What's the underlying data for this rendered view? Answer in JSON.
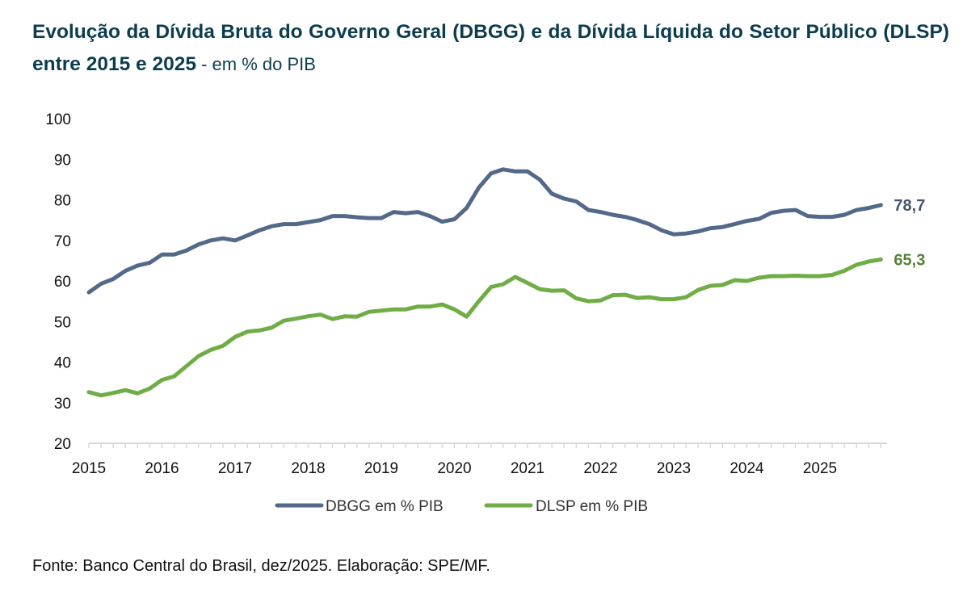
{
  "title": {
    "main": "Evolução da Dívida Bruta do Governo Geral (DBGG) e da Dívida Líquida do Setor Público (DLSP) entre 2015 e 2025",
    "suffix": " - em % do PIB"
  },
  "source": "Fonte: Banco Central do Brasil, dez/2025. Elaboração: SPE/MF.",
  "chart_data": {
    "type": "line",
    "title": "Evolução da Dívida Bruta do Governo Geral (DBGG) e da Dívida Líquida do Setor Público (DLSP) entre 2015 e 2025 - em % do PIB",
    "xlabel": "",
    "ylabel": "",
    "ylim": [
      20,
      100
    ],
    "yticks": [
      "100",
      "90",
      "80",
      "70",
      "60",
      "50",
      "40",
      "30",
      "20"
    ],
    "xticks": [
      "2015",
      "2016",
      "2017",
      "2018",
      "2019",
      "2020",
      "2021",
      "2022",
      "2023",
      "2024",
      "2025"
    ],
    "grid": false,
    "legend_position": "bottom",
    "x_start": "2015-01",
    "x_step": "2 months",
    "x_end": "2025-11",
    "series": [
      {
        "name": "DBGG em % PIB",
        "color": "#54698a",
        "end_label": "78,7",
        "values": [
          57.2,
          59.3,
          60.5,
          62.5,
          63.8,
          64.5,
          66.5,
          66.5,
          67.5,
          69,
          70,
          70.5,
          70,
          71.2,
          72.5,
          73.5,
          74,
          74,
          74.5,
          75,
          76,
          76,
          75.7,
          75.5,
          75.5,
          77,
          76.7,
          77,
          76,
          74.6,
          75.2,
          78,
          83,
          86.5,
          87.5,
          87,
          87,
          85,
          81.5,
          80.3,
          79.6,
          77.5,
          77,
          76.3,
          75.8,
          75,
          74,
          72.5,
          71.5,
          71.7,
          72.2,
          73,
          73.3,
          74,
          74.8,
          75.3,
          76.8,
          77.3,
          77.5,
          76,
          75.8,
          75.8,
          76.3,
          77.5,
          78,
          78.7
        ]
      },
      {
        "name": "DLSP em % PIB",
        "color": "#70ad47",
        "end_label": "65,3",
        "values": [
          32.6,
          31.8,
          32.4,
          33.1,
          32.3,
          33.5,
          35.6,
          36.5,
          39,
          41.5,
          43,
          44,
          46.2,
          47.5,
          47.8,
          48.5,
          50.2,
          50.7,
          51.3,
          51.7,
          50.6,
          51.3,
          51.2,
          52.4,
          52.7,
          53,
          53,
          53.7,
          53.7,
          54.2,
          53,
          51.2,
          55,
          58.5,
          59.2,
          61,
          59.5,
          58,
          57.6,
          57.7,
          55.7,
          55,
          55.2,
          56.5,
          56.6,
          55.8,
          56,
          55.5,
          55.5,
          56,
          57.8,
          58.8,
          59,
          60.2,
          60,
          60.8,
          61.2,
          61.2,
          61.3,
          61.2,
          61.2,
          61.5,
          62.5,
          64,
          64.8,
          65.3
        ]
      }
    ]
  }
}
